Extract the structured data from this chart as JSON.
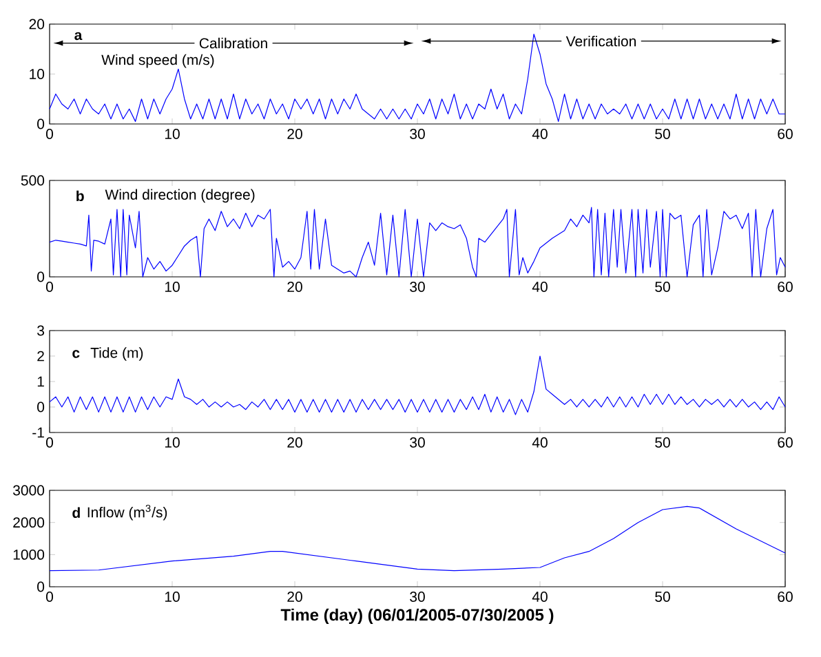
{
  "chart_data": [
    {
      "type": "line",
      "title": "Wind speed (m/s)",
      "color": "#0000ff",
      "marker": "none",
      "line_style": "solid",
      "annotations": [
        "a",
        "Calibration",
        "Verification"
      ],
      "xlim": [
        0,
        60
      ],
      "ylim": [
        0,
        20
      ],
      "xticks": [
        0,
        10,
        20,
        30,
        40,
        50,
        60
      ],
      "yticks": [
        0,
        10,
        20
      ],
      "x": [
        0,
        0.5,
        1,
        1.5,
        2,
        2.5,
        3,
        3.5,
        4,
        4.5,
        5,
        5.5,
        6,
        6.5,
        7,
        7.5,
        8,
        8.5,
        9,
        9.5,
        10,
        10.5,
        11,
        11.5,
        12,
        12.5,
        13,
        13.5,
        14,
        14.5,
        15,
        15.5,
        16,
        16.5,
        17,
        17.5,
        18,
        18.5,
        19,
        19.5,
        20,
        20.5,
        21,
        21.5,
        22,
        22.5,
        23,
        23.5,
        24,
        24.5,
        25,
        25.5,
        26,
        26.5,
        27,
        27.5,
        28,
        28.5,
        29,
        29.5,
        30,
        30.5,
        31,
        31.5,
        32,
        32.5,
        33,
        33.5,
        34,
        34.5,
        35,
        35.5,
        36,
        36.5,
        37,
        37.5,
        38,
        38.5,
        39,
        39.5,
        40,
        40.5,
        41,
        41.5,
        42,
        42.5,
        43,
        43.5,
        44,
        44.5,
        45,
        45.5,
        46,
        46.5,
        47,
        47.5,
        48,
        48.5,
        49,
        49.5,
        50,
        50.5,
        51,
        51.5,
        52,
        52.5,
        53,
        53.5,
        54,
        54.5,
        55,
        55.5,
        56,
        56.5,
        57,
        57.5,
        58,
        58.5,
        59,
        59.5,
        60
      ],
      "values": [
        3,
        6,
        4,
        3,
        5,
        2,
        5,
        3,
        2,
        4,
        1,
        4,
        1,
        3,
        0.5,
        5,
        1,
        5,
        2,
        5,
        7,
        11,
        5,
        1,
        4,
        1,
        5,
        1,
        5,
        1,
        6,
        1,
        5,
        2,
        4,
        1,
        5,
        2,
        4,
        1,
        5,
        3,
        5,
        2,
        5,
        1,
        5,
        2,
        5,
        3,
        6,
        3,
        2,
        1,
        3,
        1,
        3,
        1,
        3,
        1,
        4,
        2,
        5,
        1,
        5,
        2,
        6,
        1,
        4,
        1,
        4,
        3,
        7,
        3,
        6,
        1,
        4,
        2,
        9,
        18,
        14,
        8,
        5,
        0.5,
        6,
        1,
        5,
        1,
        4,
        1,
        4,
        2,
        3,
        2,
        4,
        1,
        4,
        1,
        4,
        1,
        3,
        1,
        5,
        1,
        5,
        1,
        5,
        1,
        4,
        1,
        4,
        1,
        6,
        1,
        5,
        1,
        5,
        2,
        5,
        2,
        2
      ]
    },
    {
      "type": "line",
      "title": "Wind direction (degree)",
      "color": "#0000ff",
      "marker": "none",
      "line_style": "solid",
      "annotations": [
        "b"
      ],
      "xlim": [
        0,
        60
      ],
      "ylim": [
        0,
        500
      ],
      "xticks": [
        0,
        10,
        20,
        30,
        40,
        50,
        60
      ],
      "yticks": [
        0,
        500
      ],
      "x": [
        0,
        0.5,
        1,
        1.5,
        2,
        2.5,
        3,
        3.2,
        3.4,
        3.6,
        4,
        4.5,
        5,
        5.2,
        5.5,
        5.8,
        6,
        6.3,
        6.5,
        7,
        7.3,
        7.6,
        8,
        8.5,
        9,
        9.5,
        10,
        10.5,
        11,
        11.5,
        12,
        12.3,
        12.6,
        13,
        13.5,
        14,
        14.5,
        15,
        15.5,
        16,
        16.5,
        17,
        17.5,
        18,
        18.3,
        18.5,
        19,
        19.5,
        20,
        20.5,
        21,
        21.3,
        21.6,
        22,
        22.5,
        23,
        23.5,
        24,
        24.5,
        25,
        25.5,
        26,
        26.5,
        27,
        27.5,
        28,
        28.5,
        29,
        29.5,
        30,
        30.5,
        31,
        31.5,
        32,
        32.5,
        33,
        33.5,
        34,
        34.5,
        34.8,
        35,
        35.5,
        36,
        36.5,
        37,
        37.3,
        37.5,
        38,
        38.3,
        38.6,
        39,
        39.5,
        40,
        41,
        42,
        42.5,
        43,
        43.5,
        44,
        44.2,
        44.4,
        44.7,
        45,
        45.3,
        45.6,
        46,
        46.3,
        46.6,
        47,
        47.5,
        47.8,
        48,
        48.4,
        48.7,
        49,
        49.5,
        49.8,
        50,
        50.3,
        50.6,
        51,
        51.5,
        52,
        52.5,
        53,
        53.3,
        53.6,
        54,
        54.5,
        55,
        55.5,
        56,
        56.5,
        57,
        57.3,
        57.6,
        58,
        58.5,
        59,
        59.3,
        59.6,
        60
      ],
      "values": [
        180,
        190,
        185,
        180,
        175,
        170,
        160,
        320,
        30,
        190,
        185,
        170,
        300,
        10,
        350,
        0,
        350,
        10,
        320,
        150,
        340,
        0,
        100,
        40,
        80,
        30,
        60,
        110,
        160,
        190,
        210,
        0,
        250,
        300,
        240,
        340,
        260,
        300,
        250,
        330,
        260,
        320,
        300,
        350,
        0,
        200,
        50,
        80,
        40,
        100,
        340,
        40,
        350,
        40,
        300,
        60,
        40,
        20,
        30,
        0,
        100,
        180,
        60,
        330,
        10,
        320,
        0,
        350,
        0,
        300,
        0,
        280,
        240,
        280,
        260,
        250,
        270,
        200,
        50,
        0,
        200,
        180,
        220,
        260,
        300,
        350,
        0,
        350,
        10,
        100,
        20,
        80,
        150,
        200,
        240,
        300,
        260,
        320,
        280,
        360,
        0,
        350,
        10,
        330,
        0,
        350,
        50,
        350,
        20,
        350,
        0,
        350,
        20,
        350,
        50,
        340,
        0,
        350,
        0,
        330,
        300,
        320,
        0,
        270,
        320,
        0,
        350,
        10,
        150,
        340,
        300,
        320,
        250,
        330,
        0,
        350,
        0,
        250,
        350,
        10,
        100,
        50
      ]
    },
    {
      "type": "line",
      "title": "Tide (m)",
      "color": "#0000ff",
      "marker": "none",
      "line_style": "solid",
      "annotations": [
        "c"
      ],
      "xlim": [
        0,
        60
      ],
      "ylim": [
        -1,
        3
      ],
      "xticks": [
        0,
        10,
        20,
        30,
        40,
        50,
        60
      ],
      "yticks": [
        -1,
        0,
        1,
        2,
        3
      ],
      "x": [
        0,
        0.5,
        1,
        1.5,
        2,
        2.5,
        3,
        3.5,
        4,
        4.5,
        5,
        5.5,
        6,
        6.5,
        7,
        7.5,
        8,
        8.5,
        9,
        9.5,
        10,
        10.5,
        11,
        11.5,
        12,
        12.5,
        13,
        13.5,
        14,
        14.5,
        15,
        15.5,
        16,
        16.5,
        17,
        17.5,
        18,
        18.5,
        19,
        19.5,
        20,
        20.5,
        21,
        21.5,
        22,
        22.5,
        23,
        23.5,
        24,
        24.5,
        25,
        25.5,
        26,
        26.5,
        27,
        27.5,
        28,
        28.5,
        29,
        29.5,
        30,
        30.5,
        31,
        31.5,
        32,
        32.5,
        33,
        33.5,
        34,
        34.5,
        35,
        35.5,
        36,
        36.5,
        37,
        37.5,
        38,
        38.5,
        39,
        39.5,
        40,
        40.5,
        41,
        41.5,
        42,
        42.5,
        43,
        43.5,
        44,
        44.5,
        45,
        45.5,
        46,
        46.5,
        47,
        47.5,
        48,
        48.5,
        49,
        49.5,
        50,
        50.5,
        51,
        51.5,
        52,
        52.5,
        53,
        53.5,
        54,
        54.5,
        55,
        55.5,
        56,
        56.5,
        57,
        57.5,
        58,
        58.5,
        59,
        59.5,
        60
      ],
      "values": [
        0.2,
        0.4,
        0.0,
        0.4,
        -0.2,
        0.4,
        -0.1,
        0.4,
        -0.2,
        0.4,
        -0.2,
        0.4,
        -0.2,
        0.4,
        -0.2,
        0.4,
        -0.1,
        0.4,
        0.0,
        0.4,
        0.3,
        1.1,
        0.4,
        0.3,
        0.1,
        0.3,
        0.0,
        0.2,
        0.0,
        0.2,
        0.0,
        0.1,
        -0.1,
        0.2,
        0.0,
        0.3,
        -0.1,
        0.3,
        -0.1,
        0.3,
        -0.2,
        0.3,
        -0.2,
        0.3,
        -0.2,
        0.3,
        -0.2,
        0.3,
        -0.2,
        0.3,
        -0.2,
        0.3,
        -0.1,
        0.3,
        -0.1,
        0.3,
        -0.1,
        0.3,
        -0.2,
        0.3,
        -0.2,
        0.3,
        -0.2,
        0.3,
        -0.2,
        0.3,
        -0.2,
        0.3,
        -0.1,
        0.4,
        -0.1,
        0.5,
        -0.2,
        0.4,
        -0.2,
        0.3,
        -0.3,
        0.3,
        -0.2,
        0.6,
        2.0,
        0.7,
        0.5,
        0.3,
        0.1,
        0.3,
        0.0,
        0.3,
        0.0,
        0.3,
        0.0,
        0.4,
        0.0,
        0.4,
        0.0,
        0.4,
        0.0,
        0.5,
        0.1,
        0.5,
        0.1,
        0.5,
        0.1,
        0.4,
        0.1,
        0.3,
        0.0,
        0.3,
        0.1,
        0.3,
        0.0,
        0.3,
        0.0,
        0.3,
        0.0,
        0.2,
        -0.1,
        0.2,
        -0.1,
        0.4,
        0.0
      ]
    },
    {
      "type": "line",
      "title": "Inflow (m$^{3}$/s)",
      "xlabel": "Time (day)   (06/01/2005-07/30/2005 )",
      "color": "#0000ff",
      "marker": "none",
      "line_style": "solid",
      "annotations": [
        "d"
      ],
      "xlim": [
        0,
        60
      ],
      "ylim": [
        0,
        3000
      ],
      "xticks": [
        0,
        10,
        20,
        30,
        40,
        50,
        60
      ],
      "yticks": [
        0,
        1000,
        2000,
        3000
      ],
      "x": [
        0,
        4,
        10,
        15,
        18,
        19,
        25,
        30,
        33,
        37,
        40,
        42,
        44,
        46,
        48,
        50,
        52,
        53,
        56,
        60
      ],
      "values": [
        500,
        520,
        800,
        950,
        1100,
        1100,
        800,
        550,
        500,
        550,
        600,
        900,
        1100,
        1500,
        2000,
        2400,
        2500,
        2450,
        1800,
        1050
      ]
    }
  ]
}
